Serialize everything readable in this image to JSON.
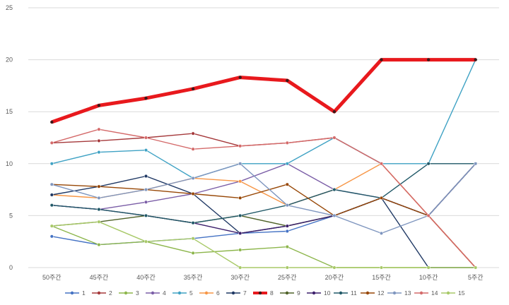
{
  "chart_data": {
    "type": "line",
    "title": "",
    "xlabel": "",
    "ylabel": "",
    "ylim": [
      0,
      25
    ],
    "yticks": [
      0,
      5,
      10,
      15,
      20,
      25
    ],
    "grid": true,
    "legend_position": "bottom",
    "categories": [
      "50주간",
      "45주간",
      "40주간",
      "35주간",
      "30주간",
      "25주간",
      "20주간",
      "15주간",
      "10주간",
      "5주간"
    ],
    "series": [
      {
        "name": "1",
        "color": "#4472c4",
        "values": [
          3,
          2.2,
          2.5,
          2.8,
          3.3,
          3.5,
          5,
          6.7,
          5,
          10
        ]
      },
      {
        "name": "2",
        "color": "#a5393b",
        "values": [
          12,
          12.2,
          12.5,
          12.9,
          11.7,
          12,
          12.5,
          10,
          5,
          0
        ]
      },
      {
        "name": "3",
        "color": "#8db64c",
        "values": [
          4,
          2.2,
          2.5,
          1.4,
          1.7,
          2,
          0,
          0,
          0,
          0
        ]
      },
      {
        "name": "4",
        "color": "#7b5ea7",
        "values": [
          6,
          5.6,
          6.3,
          7.1,
          8.3,
          10,
          7.5,
          6.7,
          5,
          10
        ]
      },
      {
        "name": "5",
        "color": "#3fa2c4",
        "values": [
          10,
          11.1,
          11.3,
          8.6,
          10,
          10,
          12.5,
          10,
          10,
          20
        ]
      },
      {
        "name": "6",
        "color": "#f79646",
        "values": [
          7,
          6.7,
          7.5,
          8.6,
          8.3,
          6,
          7.5,
          10,
          5,
          0
        ]
      },
      {
        "name": "7",
        "color": "#1f3864",
        "values": [
          7,
          7.8,
          8.8,
          7.1,
          3.3,
          4,
          5,
          6.7,
          0,
          0
        ]
      },
      {
        "name": "8",
        "color": "#e8191d",
        "values": [
          14,
          15.6,
          16.3,
          17.2,
          18.3,
          18,
          15,
          20,
          20,
          20
        ]
      },
      {
        "name": "9",
        "color": "#4f6228",
        "values": [
          4,
          4.4,
          5,
          4.3,
          5,
          4,
          5,
          6.7,
          5,
          10
        ]
      },
      {
        "name": "10",
        "color": "#3c1f6b",
        "values": [
          6,
          5.6,
          5,
          4.3,
          3.3,
          4,
          5,
          6.7,
          5,
          10
        ]
      },
      {
        "name": "11",
        "color": "#215968",
        "values": [
          6,
          5.6,
          5,
          4.3,
          5,
          6,
          7.5,
          6.7,
          10,
          10
        ]
      },
      {
        "name": "12",
        "color": "#974706",
        "values": [
          8,
          7.8,
          7.5,
          7.1,
          6.7,
          8,
          5,
          6.7,
          5,
          0
        ]
      },
      {
        "name": "13",
        "color": "#7f96bf",
        "values": [
          8,
          6.7,
          7.5,
          8.6,
          10,
          6,
          5,
          3.3,
          5,
          10
        ]
      },
      {
        "name": "14",
        "color": "#d46a6a",
        "values": [
          12,
          13.3,
          12.5,
          11.4,
          11.7,
          12,
          12.5,
          10,
          5,
          0
        ]
      },
      {
        "name": "15",
        "color": "#a8c968",
        "values": [
          4,
          4.4,
          2.5,
          2.8,
          0,
          0,
          0,
          0,
          0,
          0
        ]
      }
    ]
  }
}
